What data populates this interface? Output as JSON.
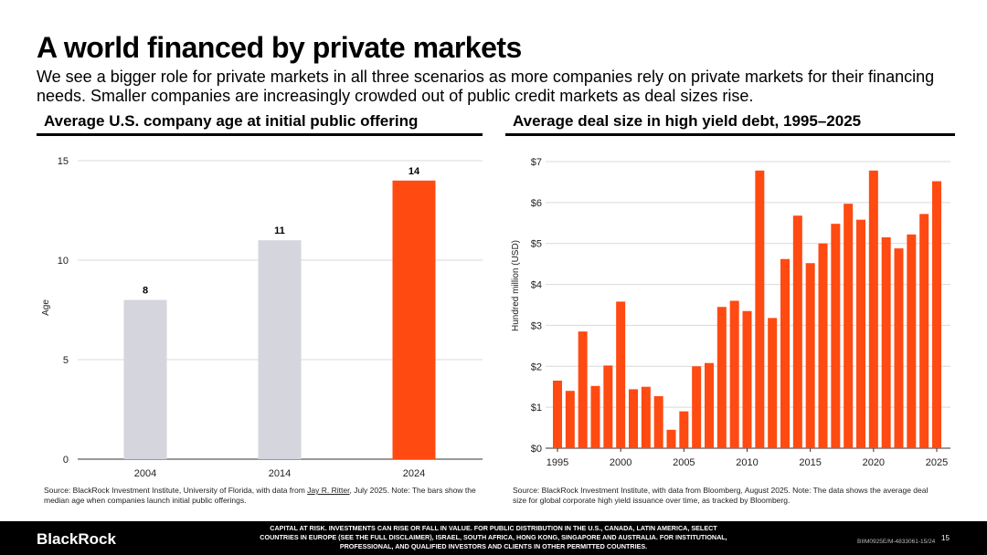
{
  "title": "A world financed by private markets",
  "subtitle": "We see a bigger role for private markets in all three scenarios as more companies rely on private markets for their financing needs. Smaller companies are increasingly crowded out of public credit markets as deal sizes rise.",
  "chart_data": [
    {
      "type": "bar",
      "title": "Average U.S. company age at initial public offering",
      "categories": [
        "2004",
        "2014",
        "2024"
      ],
      "values": [
        8,
        11,
        14
      ],
      "data_labels": [
        "8",
        "11",
        "14"
      ],
      "ylabel": "Age",
      "xlabel": "",
      "ylim": [
        0,
        15
      ],
      "yticks": [
        "0",
        "5",
        "10",
        "15"
      ],
      "colors": [
        "#d5d5de",
        "#d5d5de",
        "#ff4a12"
      ],
      "grid": true
    },
    {
      "type": "bar",
      "title": "Average deal size in high yield debt, 1995–2025",
      "x": [
        1995,
        1996,
        1997,
        1998,
        1999,
        2000,
        2001,
        2002,
        2003,
        2004,
        2005,
        2006,
        2007,
        2008,
        2009,
        2010,
        2011,
        2012,
        2013,
        2014,
        2015,
        2016,
        2017,
        2018,
        2019,
        2020,
        2021,
        2022,
        2023,
        2024,
        2025
      ],
      "values": [
        1.65,
        1.4,
        2.85,
        1.52,
        2.02,
        3.58,
        1.44,
        1.5,
        1.27,
        0.45,
        0.9,
        2.0,
        2.08,
        3.45,
        3.6,
        3.35,
        6.78,
        3.18,
        4.62,
        5.68,
        4.52,
        5.0,
        5.48,
        5.97,
        5.58,
        6.78,
        5.15,
        4.88,
        5.22,
        5.72,
        6.52
      ],
      "ylabel": "Hundred million (USD)",
      "xlabel": "",
      "ylim": [
        0,
        7
      ],
      "yticks": [
        "$0",
        "$1",
        "$2",
        "$3",
        "$4",
        "$5",
        "$6",
        "$7"
      ],
      "xticks": [
        "1995",
        "2000",
        "2005",
        "2010",
        "2015",
        "2020",
        "2025"
      ],
      "color": "#ff4a12",
      "grid": true
    }
  ],
  "left_source": {
    "pre": "Source: BlackRock Investment Institute, University of Florida, with data from ",
    "link": "Jay R. Ritter",
    "post": ", July 2025. Note: The bars show the median age when companies launch initial public offerings."
  },
  "right_source": "Source: BlackRock Investment Institute, with data from Bloomberg, August 2025. Note: The data shows the average deal size for global corporate high yield issuance over time, as tracked by Bloomberg.",
  "footer": {
    "logo": "BlackRock",
    "disclaimer": "CAPITAL AT RISK. INVESTMENTS CAN RISE OR FALL IN VALUE. FOR PUBLIC DISTRIBUTION IN THE U.S., CANADA, LATIN AMERICA, SELECT COUNTRIES IN EUROPE (SEE THE FULL DISCLAIMER), ISRAEL, SOUTH AFRICA, HONG KONG, SINGAPORE AND AUSTRALIA. FOR INSTITUTIONAL, PROFESSIONAL, AND QUALIFIED INVESTORS AND CLIENTS IN OTHER PERMITTED COUNTRIES.",
    "doc_id": "BIIM0925E/M-4833061-15/24",
    "page": "15"
  }
}
